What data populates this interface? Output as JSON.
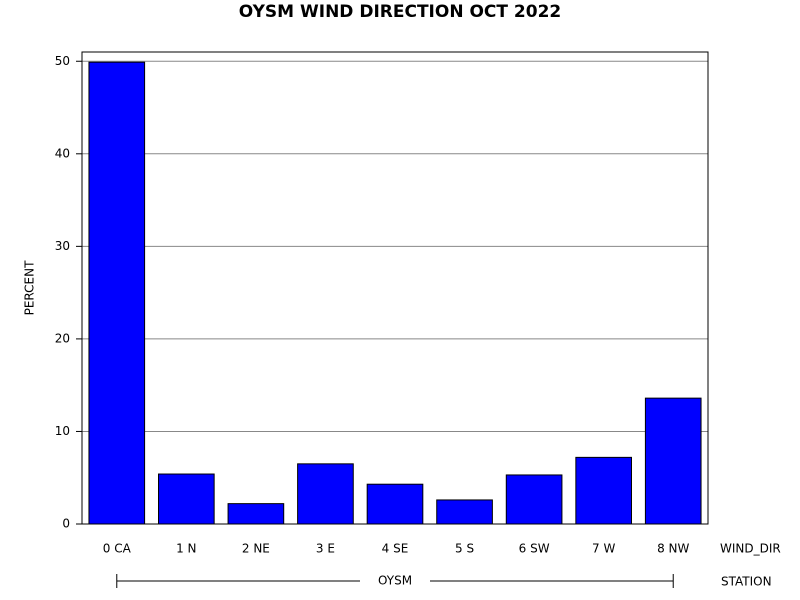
{
  "chart_data": {
    "type": "bar",
    "title": "OYSM WIND DIRECTION OCT 2022",
    "y_label": "PERCENT",
    "x_label": "WIND_DIR",
    "group_label": "STATION",
    "groups": [
      "OYSM"
    ],
    "categories": [
      "0 CA",
      "1 N",
      "2 NE",
      "3 E",
      "4 SE",
      "5 S",
      "6 SW",
      "7 W",
      "8 NW"
    ],
    "values": [
      49.9,
      5.4,
      2.2,
      6.5,
      4.3,
      2.6,
      5.3,
      7.2,
      13.6
    ],
    "color": "#0000ff",
    "ylim": [
      0,
      51
    ],
    "yticks": [
      0,
      10,
      20,
      30,
      40,
      50
    ],
    "grid": true
  }
}
